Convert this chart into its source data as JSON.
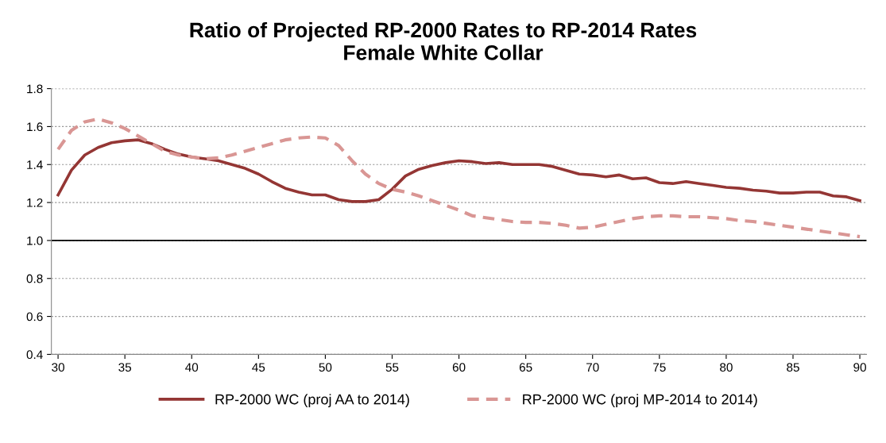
{
  "chart_data": {
    "type": "line",
    "title": "Ratio of Projected RP-2000 Rates to RP-2014 Rates\nFemale White Collar",
    "x": [
      30,
      31,
      32,
      33,
      34,
      35,
      36,
      37,
      38,
      39,
      40,
      41,
      42,
      43,
      44,
      45,
      46,
      47,
      48,
      49,
      50,
      51,
      52,
      53,
      54,
      55,
      56,
      57,
      58,
      59,
      60,
      61,
      62,
      63,
      64,
      65,
      66,
      67,
      68,
      69,
      70,
      71,
      72,
      73,
      74,
      75,
      76,
      77,
      78,
      79,
      80,
      81,
      82,
      83,
      84,
      85,
      86,
      87,
      88,
      89,
      90
    ],
    "series": [
      {
        "name": "RP-2000 WC (proj AA to 2014)",
        "color": "#943634",
        "line_style": "solid",
        "values": [
          1.24,
          1.37,
          1.45,
          1.49,
          1.515,
          1.525,
          1.53,
          1.51,
          1.48,
          1.455,
          1.44,
          1.43,
          1.42,
          1.4,
          1.38,
          1.35,
          1.31,
          1.275,
          1.255,
          1.24,
          1.24,
          1.215,
          1.205,
          1.205,
          1.215,
          1.27,
          1.34,
          1.375,
          1.395,
          1.41,
          1.42,
          1.415,
          1.405,
          1.41,
          1.4,
          1.4,
          1.4,
          1.39,
          1.37,
          1.35,
          1.345,
          1.335,
          1.345,
          1.325,
          1.33,
          1.305,
          1.3,
          1.31,
          1.3,
          1.29,
          1.28,
          1.275,
          1.265,
          1.26,
          1.25,
          1.25,
          1.255,
          1.255,
          1.235,
          1.23,
          1.21
        ]
      },
      {
        "name": "RP-2000 WC (proj MP-2014 to 2014)",
        "color": "#d99694",
        "line_style": "dashed",
        "values": [
          1.48,
          1.58,
          1.625,
          1.64,
          1.62,
          1.59,
          1.55,
          1.51,
          1.47,
          1.45,
          1.44,
          1.43,
          1.435,
          1.45,
          1.47,
          1.49,
          1.51,
          1.53,
          1.54,
          1.545,
          1.54,
          1.5,
          1.42,
          1.35,
          1.3,
          1.27,
          1.255,
          1.235,
          1.21,
          1.185,
          1.16,
          1.13,
          1.12,
          1.11,
          1.1,
          1.095,
          1.095,
          1.09,
          1.08,
          1.065,
          1.07,
          1.085,
          1.1,
          1.115,
          1.125,
          1.13,
          1.13,
          1.125,
          1.125,
          1.12,
          1.115,
          1.105,
          1.1,
          1.09,
          1.08,
          1.07,
          1.06,
          1.05,
          1.04,
          1.03,
          1.02
        ]
      }
    ],
    "xlim": [
      29.5,
      90.5
    ],
    "xticks": [
      30,
      35,
      40,
      45,
      50,
      55,
      60,
      65,
      70,
      75,
      80,
      85,
      90
    ],
    "ylim": [
      0.4,
      1.8
    ],
    "yticks": [
      {
        "value": 0.4,
        "label": "0.4"
      },
      {
        "value": 0.6,
        "label": "0.6"
      },
      {
        "value": 0.8,
        "label": "0.8"
      },
      {
        "value": 1.0,
        "label": "1.0"
      },
      {
        "value": 1.2,
        "label": "1.2"
      },
      {
        "value": 1.4,
        "label": "1.4"
      },
      {
        "value": 1.6,
        "label": "1.6"
      },
      {
        "value": 1.8,
        "label": "1.8"
      }
    ],
    "ref_lines": [
      {
        "axis": "y",
        "value": 1.0,
        "color": "#000000",
        "line_style": "solid"
      }
    ],
    "grid": "y",
    "legend": "bottom"
  }
}
